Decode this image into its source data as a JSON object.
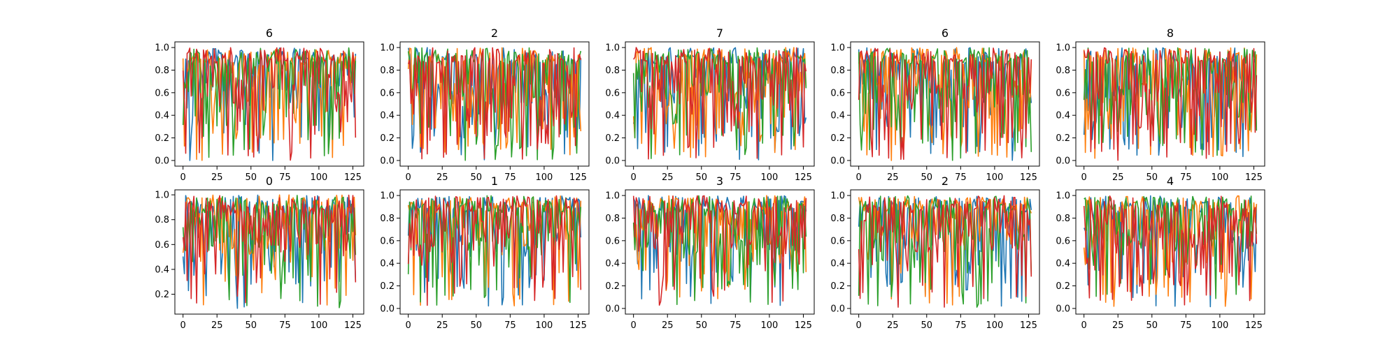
{
  "figure": {
    "series_colors": [
      "#1f77b4",
      "#ff7f0e",
      "#2ca02c",
      "#d62728"
    ]
  },
  "chart_data": [
    {
      "type": "line",
      "title": "6",
      "xlabel": "",
      "ylabel": "",
      "xlim": [
        -6,
        133
      ],
      "ylim": [
        -0.05,
        1.05
      ],
      "x_ticks": [
        0,
        25,
        50,
        75,
        100,
        125
      ],
      "y_ticks": [
        0.0,
        0.2,
        0.4,
        0.6,
        0.8,
        1.0
      ],
      "grid": false,
      "legend": "none",
      "x": {
        "start": 0,
        "end": 127,
        "step": 1
      },
      "series_character": {
        "min": 0.0,
        "dip_depth": 0.55,
        "seed": 11
      }
    },
    {
      "type": "line",
      "title": "2",
      "xlabel": "",
      "ylabel": "",
      "xlim": [
        -6,
        133
      ],
      "ylim": [
        -0.05,
        1.05
      ],
      "x_ticks": [
        0,
        25,
        50,
        75,
        100,
        125
      ],
      "y_ticks": [
        0.0,
        0.2,
        0.4,
        0.6,
        0.8,
        1.0
      ],
      "grid": false,
      "legend": "none",
      "x": {
        "start": 0,
        "end": 127,
        "step": 1
      },
      "series_character": {
        "min": 0.0,
        "dip_depth": 0.85,
        "seed": 23
      }
    },
    {
      "type": "line",
      "title": "7",
      "xlabel": "",
      "ylabel": "",
      "xlim": [
        -6,
        133
      ],
      "ylim": [
        -0.05,
        1.05
      ],
      "x_ticks": [
        0,
        25,
        50,
        75,
        100,
        125
      ],
      "y_ticks": [
        0.0,
        0.2,
        0.4,
        0.6,
        0.8,
        1.0
      ],
      "grid": false,
      "legend": "none",
      "x": {
        "start": 0,
        "end": 127,
        "step": 1
      },
      "series_character": {
        "min": 0.0,
        "dip_depth": 0.7,
        "seed": 37
      }
    },
    {
      "type": "line",
      "title": "6",
      "xlabel": "",
      "ylabel": "",
      "xlim": [
        -6,
        133
      ],
      "ylim": [
        -0.05,
        1.05
      ],
      "x_ticks": [
        0,
        25,
        50,
        75,
        100,
        125
      ],
      "y_ticks": [
        0.0,
        0.2,
        0.4,
        0.6,
        0.8,
        1.0
      ],
      "grid": false,
      "legend": "none",
      "x": {
        "start": 0,
        "end": 127,
        "step": 1
      },
      "series_character": {
        "min": 0.0,
        "dip_depth": 0.65,
        "seed": 41
      }
    },
    {
      "type": "line",
      "title": "8",
      "xlabel": "",
      "ylabel": "",
      "xlim": [
        -6,
        133
      ],
      "ylim": [
        -0.05,
        1.05
      ],
      "x_ticks": [
        0,
        25,
        50,
        75,
        100,
        125
      ],
      "y_ticks": [
        0.0,
        0.2,
        0.4,
        0.6,
        0.8,
        1.0
      ],
      "grid": false,
      "legend": "none",
      "x": {
        "start": 0,
        "end": 127,
        "step": 1
      },
      "series_character": {
        "min": 0.0,
        "dip_depth": 0.75,
        "seed": 53
      }
    },
    {
      "type": "line",
      "title": "0",
      "xlabel": "",
      "ylabel": "",
      "xlim": [
        -6,
        133
      ],
      "ylim": [
        0.04,
        1.04
      ],
      "x_ticks": [
        0,
        25,
        50,
        75,
        100,
        125
      ],
      "y_ticks": [
        0.2,
        0.4,
        0.6,
        0.8,
        1.0
      ],
      "grid": false,
      "legend": "none",
      "x": {
        "start": 0,
        "end": 127,
        "step": 1
      },
      "series_character": {
        "min": 0.08,
        "dip_depth": 0.45,
        "seed": 61
      }
    },
    {
      "type": "line",
      "title": "1",
      "xlabel": "",
      "ylabel": "",
      "xlim": [
        -6,
        133
      ],
      "ylim": [
        -0.05,
        1.05
      ],
      "x_ticks": [
        0,
        25,
        50,
        75,
        100,
        125
      ],
      "y_ticks": [
        0.0,
        0.2,
        0.4,
        0.6,
        0.8,
        1.0
      ],
      "grid": false,
      "legend": "none",
      "x": {
        "start": 0,
        "end": 127,
        "step": 1
      },
      "series_character": {
        "min": 0.02,
        "dip_depth": 0.5,
        "seed": 73
      }
    },
    {
      "type": "line",
      "title": "3",
      "xlabel": "",
      "ylabel": "",
      "xlim": [
        -6,
        133
      ],
      "ylim": [
        -0.05,
        1.05
      ],
      "x_ticks": [
        0,
        25,
        50,
        75,
        100,
        125
      ],
      "y_ticks": [
        0.0,
        0.2,
        0.4,
        0.6,
        0.8,
        1.0
      ],
      "grid": false,
      "legend": "none",
      "x": {
        "start": 0,
        "end": 127,
        "step": 1
      },
      "series_character": {
        "min": 0.02,
        "dip_depth": 0.5,
        "seed": 89
      }
    },
    {
      "type": "line",
      "title": "2",
      "xlabel": "",
      "ylabel": "",
      "xlim": [
        -6,
        133
      ],
      "ylim": [
        -0.05,
        1.05
      ],
      "x_ticks": [
        0,
        25,
        50,
        75,
        100,
        125
      ],
      "y_ticks": [
        0.0,
        0.2,
        0.4,
        0.6,
        0.8,
        1.0
      ],
      "grid": false,
      "legend": "none",
      "x": {
        "start": 0,
        "end": 127,
        "step": 1
      },
      "series_character": {
        "min": 0.0,
        "dip_depth": 0.45,
        "seed": 97
      }
    },
    {
      "type": "line",
      "title": "4",
      "xlabel": "",
      "ylabel": "",
      "xlim": [
        -6,
        133
      ],
      "ylim": [
        -0.05,
        1.05
      ],
      "x_ticks": [
        0,
        25,
        50,
        75,
        100,
        125
      ],
      "y_ticks": [
        0.0,
        0.2,
        0.4,
        0.6,
        0.8,
        1.0
      ],
      "grid": false,
      "legend": "none",
      "x": {
        "start": 0,
        "end": 127,
        "step": 1
      },
      "series_character": {
        "min": 0.0,
        "dip_depth": 0.55,
        "seed": 103
      }
    }
  ]
}
